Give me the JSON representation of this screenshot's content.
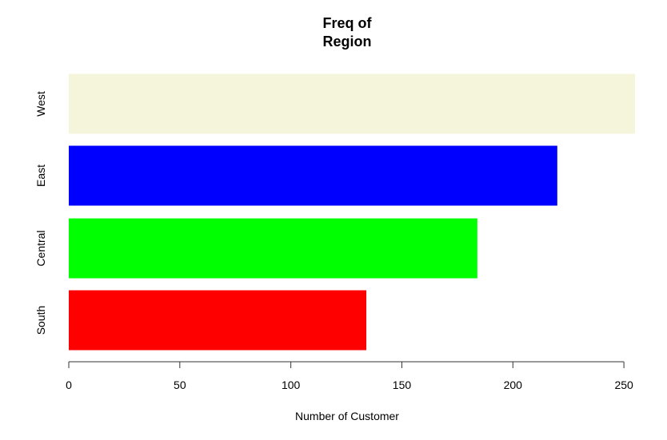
{
  "chart_data": {
    "type": "bar",
    "orientation": "horizontal",
    "title_lines": [
      "Freq of",
      "Region"
    ],
    "xlabel": "Number of Customer",
    "ylabel": "",
    "categories": [
      "South",
      "Central",
      "East",
      "West"
    ],
    "values": [
      134,
      184,
      220,
      255
    ],
    "colors": [
      "#ff0000",
      "#00ff00",
      "#0000ff",
      "#f5f5dc"
    ],
    "xlim": [
      0,
      255
    ],
    "xticks": [
      0,
      50,
      100,
      150,
      200,
      250
    ],
    "grid": false,
    "legend": "none"
  }
}
